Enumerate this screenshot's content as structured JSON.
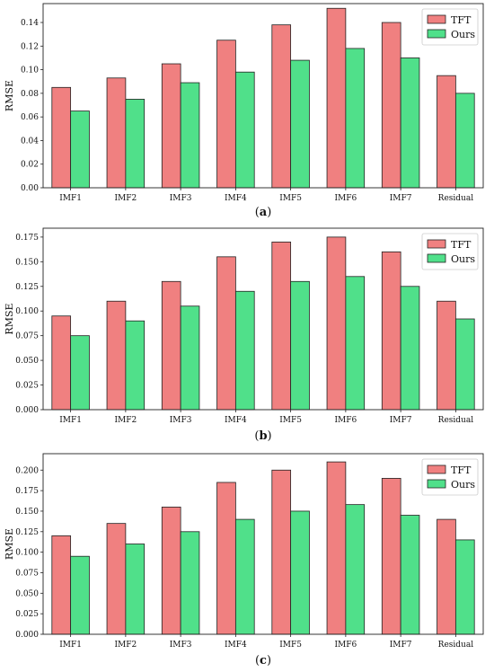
{
  "colors": {
    "tft": "#f08080",
    "ours": "#50e08a",
    "edge": "#222222"
  },
  "chart_data": [
    {
      "type": "bar",
      "caption": "a",
      "categories": [
        "IMF1",
        "IMF2",
        "IMF3",
        "IMF4",
        "IMF5",
        "IMF6",
        "IMF7",
        "Residual"
      ],
      "series": [
        {
          "name": "TFT",
          "values": [
            0.085,
            0.093,
            0.105,
            0.125,
            0.138,
            0.152,
            0.14,
            0.095
          ]
        },
        {
          "name": "Ours",
          "values": [
            0.065,
            0.075,
            0.089,
            0.098,
            0.108,
            0.118,
            0.11,
            0.08
          ]
        }
      ],
      "ylabel": "RMSE",
      "ylim": [
        0,
        0.156
      ],
      "yticks": [
        0.0,
        0.02,
        0.04,
        0.06,
        0.08,
        0.1,
        0.12,
        0.14
      ],
      "ytick_labels": [
        "0.00",
        "0.02",
        "0.04",
        "0.06",
        "0.08",
        "0.10",
        "0.12",
        "0.14"
      ],
      "legend": "top-right",
      "grid": false
    },
    {
      "type": "bar",
      "caption": "b",
      "categories": [
        "IMF1",
        "IMF2",
        "IMF3",
        "IMF4",
        "IMF5",
        "IMF6",
        "IMF7",
        "Residual"
      ],
      "series": [
        {
          "name": "TFT",
          "values": [
            0.095,
            0.11,
            0.13,
            0.155,
            0.17,
            0.175,
            0.16,
            0.11
          ]
        },
        {
          "name": "Ours",
          "values": [
            0.075,
            0.09,
            0.105,
            0.12,
            0.13,
            0.135,
            0.125,
            0.092
          ]
        }
      ],
      "ylabel": "RMSE",
      "ylim": [
        0,
        0.184
      ],
      "yticks": [
        0.0,
        0.025,
        0.05,
        0.075,
        0.1,
        0.125,
        0.15,
        0.175
      ],
      "ytick_labels": [
        "0.000",
        "0.025",
        "0.050",
        "0.075",
        "0.100",
        "0.125",
        "0.150",
        "0.175"
      ],
      "legend": "top-right",
      "grid": false
    },
    {
      "type": "bar",
      "caption": "c",
      "categories": [
        "IMF1",
        "IMF2",
        "IMF3",
        "IMF4",
        "IMF5",
        "IMF6",
        "IMF7",
        "Residual"
      ],
      "series": [
        {
          "name": "TFT",
          "values": [
            0.12,
            0.135,
            0.155,
            0.185,
            0.2,
            0.21,
            0.19,
            0.14
          ]
        },
        {
          "name": "Ours",
          "values": [
            0.095,
            0.11,
            0.125,
            0.14,
            0.15,
            0.158,
            0.145,
            0.115
          ]
        }
      ],
      "ylabel": "RMSE",
      "ylim": [
        0,
        0.22
      ],
      "yticks": [
        0.0,
        0.025,
        0.05,
        0.075,
        0.1,
        0.125,
        0.15,
        0.175,
        0.2
      ],
      "ytick_labels": [
        "0.000",
        "0.025",
        "0.050",
        "0.075",
        "0.100",
        "0.125",
        "0.150",
        "0.175",
        "0.200"
      ],
      "legend": "top-right",
      "grid": false
    }
  ]
}
